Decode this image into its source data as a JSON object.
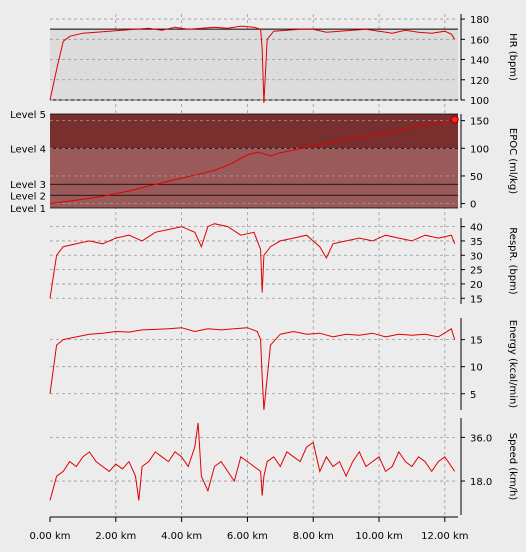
{
  "chart_data": [
    {
      "id": "hr",
      "type": "line",
      "ylabel": "HR (bpm)",
      "yticks": [
        100,
        120,
        140,
        160,
        180
      ],
      "ylim": [
        100,
        185
      ],
      "band": [
        100,
        170
      ],
      "x": [
        0.0,
        0.2,
        0.4,
        0.6,
        1.0,
        1.4,
        1.8,
        2.2,
        2.6,
        3.0,
        3.4,
        3.8,
        4.2,
        4.6,
        5.0,
        5.4,
        5.8,
        6.2,
        6.4,
        6.45,
        6.5,
        6.6,
        6.8,
        7.2,
        7.6,
        8.0,
        8.4,
        8.8,
        9.2,
        9.6,
        10.0,
        10.4,
        10.8,
        11.2,
        11.6,
        12.0,
        12.2,
        12.3
      ],
      "y": [
        100,
        130,
        158,
        163,
        166,
        167,
        168,
        169,
        170,
        171,
        169,
        172,
        170,
        171,
        172,
        171,
        173,
        172,
        170,
        150,
        97,
        160,
        168,
        169,
        170,
        170,
        167,
        168,
        169,
        170,
        168,
        166,
        169,
        167,
        166,
        168,
        165,
        160
      ]
    },
    {
      "id": "epoc",
      "type": "line",
      "ylabel": "EPOC (ml/kg)",
      "yticks": [
        0,
        50,
        100,
        150
      ],
      "ylim": [
        -8,
        162
      ],
      "levels": [
        {
          "label": "Level 1",
          "value": -8
        },
        {
          "label": "Level 2",
          "value": 15
        },
        {
          "label": "Level 3",
          "value": 35
        },
        {
          "label": "Level 4",
          "value": 100
        },
        {
          "label": "Level 5",
          "value": 162
        }
      ],
      "x": [
        0.0,
        0.5,
        1.0,
        1.5,
        2.0,
        2.5,
        3.0,
        3.5,
        4.0,
        4.5,
        5.0,
        5.5,
        6.0,
        6.3,
        6.5,
        6.7,
        7.0,
        7.5,
        8.0,
        8.5,
        9.0,
        9.5,
        10.0,
        10.5,
        11.0,
        11.5,
        12.0,
        12.3
      ],
      "y": [
        0,
        4,
        8,
        12,
        18,
        24,
        32,
        39,
        46,
        53,
        60,
        72,
        88,
        93,
        90,
        86,
        92,
        98,
        104,
        110,
        115,
        120,
        126,
        131,
        137,
        143,
        148,
        152
      ]
    },
    {
      "id": "resp",
      "type": "line",
      "ylabel": "RespR. (bpm)",
      "yticks": [
        15,
        20,
        25,
        30,
        35,
        40
      ],
      "ylim": [
        13,
        43
      ],
      "x": [
        0.0,
        0.2,
        0.4,
        0.8,
        1.2,
        1.6,
        2.0,
        2.4,
        2.8,
        3.2,
        3.6,
        4.0,
        4.4,
        4.6,
        4.8,
        5.0,
        5.4,
        5.8,
        6.2,
        6.4,
        6.45,
        6.5,
        6.7,
        7.0,
        7.4,
        7.8,
        8.2,
        8.4,
        8.6,
        9.0,
        9.4,
        9.8,
        10.2,
        10.6,
        11.0,
        11.4,
        11.8,
        12.2,
        12.3
      ],
      "y": [
        15,
        30,
        33,
        34,
        35,
        34,
        36,
        37,
        35,
        38,
        39,
        40,
        38,
        33,
        40,
        41,
        40,
        37,
        38,
        32,
        17,
        30,
        33,
        35,
        36,
        37,
        33,
        29,
        34,
        35,
        36,
        35,
        37,
        36,
        35,
        37,
        36,
        37,
        34
      ]
    },
    {
      "id": "energy",
      "type": "line",
      "ylabel": "Energy (kcal/min)",
      "yticks": [
        5,
        10,
        15
      ],
      "ylim": [
        2,
        19
      ],
      "x": [
        0.0,
        0.2,
        0.4,
        0.8,
        1.2,
        1.6,
        2.0,
        2.4,
        2.8,
        3.2,
        3.6,
        4.0,
        4.4,
        4.8,
        5.2,
        5.6,
        6.0,
        6.3,
        6.4,
        6.45,
        6.5,
        6.7,
        7.0,
        7.4,
        7.8,
        8.2,
        8.6,
        9.0,
        9.4,
        9.8,
        10.2,
        10.6,
        11.0,
        11.4,
        11.8,
        12.2,
        12.3
      ],
      "y": [
        5,
        14,
        15,
        15.5,
        16,
        16.2,
        16.5,
        16.4,
        16.8,
        16.9,
        17,
        17.2,
        16.5,
        17,
        16.8,
        17,
        17.2,
        16.5,
        15,
        8,
        2,
        14,
        16,
        16.5,
        16,
        16.2,
        15.5,
        16,
        15.8,
        16.2,
        15.5,
        16,
        15.8,
        16,
        15.5,
        17,
        15
      ]
    },
    {
      "id": "speed",
      "type": "line",
      "ylabel": "Speed (km/h)",
      "yticks": [
        18.0,
        36.0
      ],
      "ylim": [
        4,
        44
      ],
      "x": [
        0.0,
        0.2,
        0.4,
        0.6,
        0.8,
        1.0,
        1.2,
        1.4,
        1.6,
        1.8,
        2.0,
        2.2,
        2.4,
        2.6,
        2.7,
        2.8,
        3.0,
        3.2,
        3.4,
        3.6,
        3.8,
        4.0,
        4.2,
        4.4,
        4.5,
        4.6,
        4.8,
        5.0,
        5.2,
        5.4,
        5.6,
        5.8,
        6.0,
        6.2,
        6.4,
        6.45,
        6.5,
        6.6,
        6.8,
        7.0,
        7.2,
        7.4,
        7.6,
        7.8,
        8.0,
        8.2,
        8.4,
        8.6,
        8.8,
        9.0,
        9.2,
        9.4,
        9.6,
        9.8,
        10.0,
        10.2,
        10.4,
        10.6,
        10.8,
        11.0,
        11.2,
        11.4,
        11.6,
        11.8,
        12.0,
        12.2,
        12.3
      ],
      "y": [
        10,
        20,
        22,
        26,
        24,
        28,
        30,
        26,
        24,
        22,
        25,
        23,
        26,
        20,
        10,
        24,
        26,
        30,
        28,
        26,
        30,
        28,
        24,
        32,
        42,
        20,
        14,
        24,
        26,
        22,
        18,
        28,
        26,
        24,
        22,
        12,
        20,
        26,
        28,
        24,
        30,
        28,
        26,
        32,
        34,
        22,
        28,
        24,
        26,
        20,
        26,
        30,
        24,
        26,
        28,
        22,
        24,
        30,
        26,
        24,
        28,
        26,
        22,
        26,
        28,
        24,
        22
      ]
    },
    {
      "id": "distance-axis",
      "type": "axis",
      "xticks": [
        "0.00 km",
        "2.00 km",
        "4.00 km",
        "6.00 km",
        "8.00 km",
        "10.00 km",
        "12.00 km"
      ],
      "xlim": [
        0,
        12.4
      ]
    }
  ],
  "colors": {
    "line": "#e00000",
    "marker": "#ff2020",
    "hr_band": "#dcdcdc",
    "epoc_band_dark": "#7a2f2f",
    "epoc_band_light": "#9a5a5a",
    "plot_bg": "#ececec",
    "grid": "#999999"
  }
}
